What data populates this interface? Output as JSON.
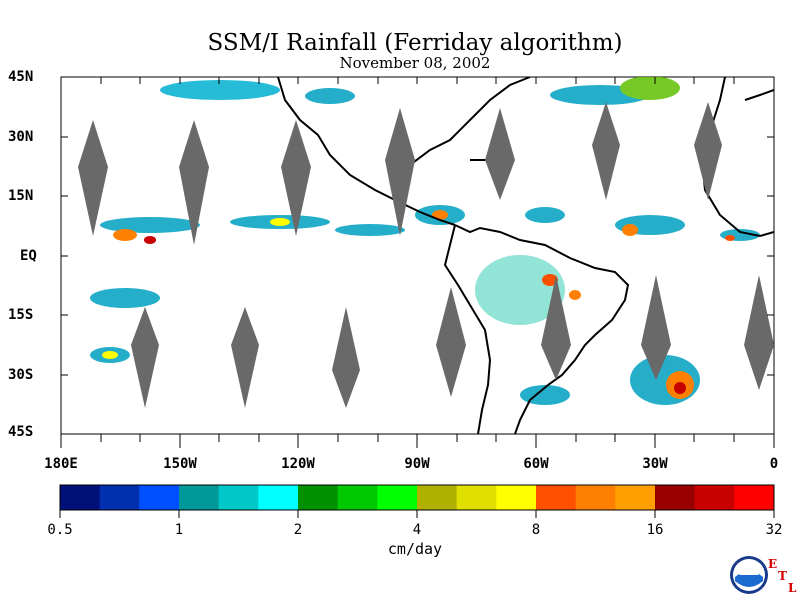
{
  "title": "SSM/I Rainfall (Ferriday algorithm)",
  "date": "November 08, 2002",
  "lat_labels": [
    "45N",
    "30N",
    "15N",
    "EQ",
    "15S",
    "30S",
    "45S"
  ],
  "lon_labels": [
    "180E",
    "150W",
    "120W",
    "90W",
    "60W",
    "30W",
    "0"
  ],
  "colorbar": {
    "colors": [
      "#001078",
      "#0030b0",
      "#0050ff",
      "#009898",
      "#00c8c8",
      "#00ffff",
      "#009000",
      "#00c800",
      "#00ff00",
      "#b0b000",
      "#e0e000",
      "#ffff00",
      "#ff5000",
      "#ff8000",
      "#ffa000",
      "#980000",
      "#c80000",
      "#ff0000"
    ],
    "tick_labels": [
      "0.5",
      "1",
      "2",
      "4",
      "8",
      "16",
      "32"
    ],
    "unit": "cm/day"
  },
  "logo": {
    "icon": "noaa-logo",
    "text": "NOAA",
    "etl": [
      "E",
      "T",
      "L"
    ]
  }
}
